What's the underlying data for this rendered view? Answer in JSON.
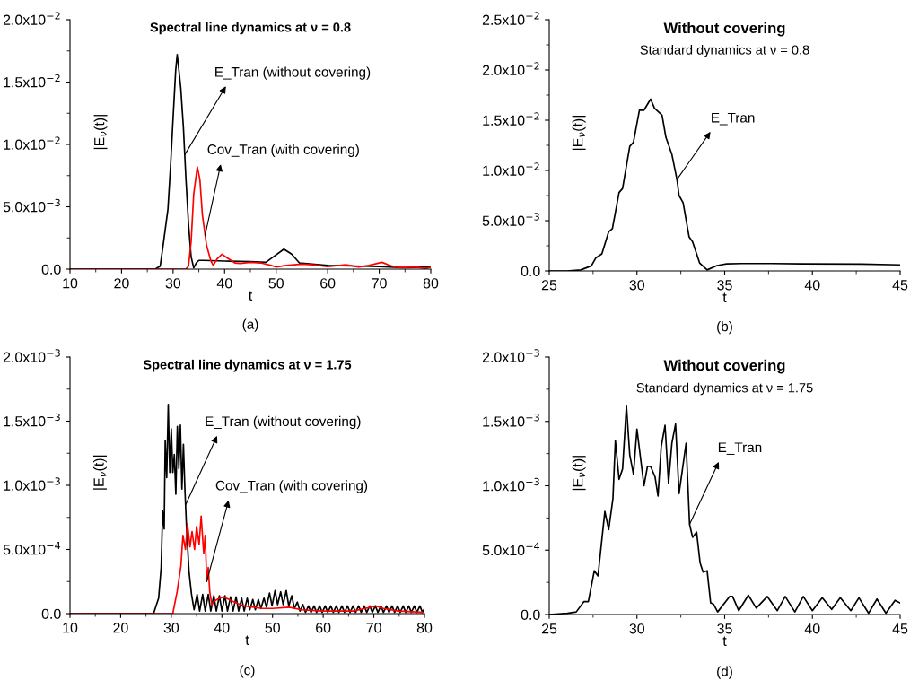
{
  "chart_data": [
    {
      "type": "line",
      "title": "Spectral line dynamics at ν = 0.8",
      "xlabel": "t",
      "ylabel": "|E$_{ν}$(t)|",
      "xlim": [
        10,
        80
      ],
      "ylim": [
        0,
        0.02
      ],
      "xticks": [
        10,
        {
          "value": 15,
          "label": null
        },
        20,
        {
          "value": 25,
          "label": null
        },
        30,
        {
          "value": 35,
          "label": null
        },
        40,
        {
          "value": 45,
          "label": null
        },
        50,
        {
          "value": 55,
          "label": null
        },
        60,
        {
          "value": 65,
          "label": null
        },
        70,
        {
          "value": 75,
          "label": null
        },
        80
      ],
      "yticks": [
        {
          "value": 0,
          "label": "0.0"
        },
        {
          "value": 0.0025,
          "label": null
        },
        {
          "value": 0.005,
          "label": "5.0x10$^{−3}$"
        },
        {
          "value": 0.0075,
          "label": null
        },
        {
          "value": 0.01,
          "label": "1.0x10$^{−2}$"
        },
        {
          "value": 0.0125,
          "label": null
        },
        {
          "value": 0.015,
          "label": "1.5x10$^{−2}$"
        },
        {
          "value": 0.0175,
          "label": null
        },
        {
          "value": 0.02,
          "label": "2.0x10$^{−2}$"
        }
      ],
      "series": [
        {
          "color": "#000000",
          "x": [
            10,
            26.5,
            27.5,
            28,
            29,
            29.5,
            30,
            30.5,
            30.8,
            31.2,
            31.5,
            32,
            32.5,
            33,
            33.5,
            34,
            34.5,
            35,
            36,
            40,
            45,
            48,
            49.5,
            51.5,
            53,
            54.5,
            57,
            60,
            65,
            70,
            75,
            80
          ],
          "values": [
            0,
            0,
            0.00024,
            0.0017,
            0.0048,
            0.0082,
            0.0121,
            0.0159,
            0.0172,
            0.0157,
            0.0145,
            0.0114,
            0.0072,
            0.0036,
            0.001,
            0.0001,
            0.0005,
            0.0007,
            0.0007,
            0.00065,
            0.0006,
            0.00055,
            0.001,
            0.0016,
            0.0012,
            0.0005,
            0.0004,
            0.0003,
            0.00025,
            0.0002,
            0.00012,
            0.00017
          ]
        },
        {
          "color": "#ff0000",
          "x": [
            10,
            32.5,
            33,
            33.5,
            34,
            34.7,
            35.2,
            35.7,
            36.5,
            37.3,
            37.8,
            38.5,
            39.5,
            40.5,
            42,
            43,
            45,
            47,
            49,
            50,
            52,
            55,
            57,
            60,
            63.5,
            66,
            68,
            70.5,
            72.5,
            74,
            77,
            79,
            80
          ],
          "values": [
            0,
            0,
            0.00024,
            0.0022,
            0.006,
            0.0082,
            0.0072,
            0.0043,
            0.0019,
            0.0007,
            0.0003,
            0.0008,
            0.0012,
            0.0009,
            0.0005,
            0.00045,
            0.00055,
            0.0005,
            0.0003,
            0.00017,
            0.0003,
            0.0004,
            0.00035,
            0.0002,
            0.00035,
            0.00017,
            0.0003,
            0.00055,
            0.00024,
            0.00012,
            0.00017,
            5e-05,
            0.00015
          ]
        }
      ],
      "annotations": [
        {
          "text": "E_Tran (without covering)",
          "x": 32.3,
          "y": 0.0092
        },
        {
          "text": "Cov_Tran (with covering)",
          "x": 36.2,
          "y": 0.0027
        },
        "(a)"
      ]
    },
    {
      "type": "line",
      "title": "Without covering",
      "subtitle": "Standard dynamics at ν = 0.8",
      "xlabel": "t",
      "ylabel": "|E$_{ν}$(t)|",
      "xlim": [
        25,
        45
      ],
      "ylim": [
        0,
        0.025
      ],
      "xticks": [
        25,
        {
          "value": 27.5,
          "label": null
        },
        30,
        {
          "value": 32.5,
          "label": null
        },
        35,
        {
          "value": 37.5,
          "label": null
        },
        40,
        {
          "value": 42.5,
          "label": null
        },
        45
      ],
      "yticks": [
        {
          "value": 0,
          "label": "0.0"
        },
        {
          "value": 0.0025,
          "label": null
        },
        {
          "value": 0.005,
          "label": "5.0x10$^{−3}$"
        },
        {
          "value": 0.0075,
          "label": null
        },
        {
          "value": 0.01,
          "label": "1.0x10$^{−2}$"
        },
        {
          "value": 0.0125,
          "label": null
        },
        {
          "value": 0.015,
          "label": "1.5x10$^{−2}$"
        },
        {
          "value": 0.0175,
          "label": null
        },
        {
          "value": 0.02,
          "label": "2.0x10$^{−2}$"
        },
        {
          "value": 0.0225,
          "label": null
        },
        {
          "value": 0.025,
          "label": "2.5x10$^{−2}$"
        }
      ],
      "series": [
        {
          "color": "#000000",
          "x": [
            25,
            26,
            26.8,
            27.4,
            27.66,
            28.0,
            28.39,
            28.6,
            28.98,
            29.18,
            29.59,
            29.8,
            30.14,
            30.4,
            30.78,
            31.0,
            31.43,
            31.65,
            31.99,
            32.28,
            32.4,
            32.63,
            32.97,
            33.17,
            33.57,
            34.0,
            34.51,
            34.77,
            35.11,
            35.97,
            37.68,
            39.4,
            42.8,
            45
          ],
          "values": [
            0,
            0,
            0.0001,
            0.0005,
            0.0013,
            0.0017,
            0.0039,
            0.0042,
            0.0078,
            0.0082,
            0.0124,
            0.0128,
            0.016,
            0.016,
            0.0171,
            0.0162,
            0.0155,
            0.0133,
            0.0116,
            0.0091,
            0.0075,
            0.0068,
            0.0034,
            0.0029,
            0.0008,
            0.0001,
            0.0005,
            0.0006,
            0.0007,
            0.00074,
            0.00074,
            0.0007,
            0.00068,
            0.0006
          ]
        }
      ],
      "annotations": [
        {
          "text": "E_Tran",
          "x": 32.28,
          "y": 0.0091
        },
        "(b)"
      ]
    },
    {
      "type": "line",
      "title": "Spectral line dynamics at ν = 1.75",
      "xlabel": "t",
      "ylabel": "|E$_{ν}$(t)|",
      "xlim": [
        10,
        80
      ],
      "ylim": [
        0,
        0.002
      ],
      "xticks": [
        10,
        {
          "value": 15,
          "label": null
        },
        20,
        {
          "value": 25,
          "label": null
        },
        30,
        {
          "value": 35,
          "label": null
        },
        40,
        {
          "value": 45,
          "label": null
        },
        50,
        {
          "value": 55,
          "label": null
        },
        60,
        {
          "value": 65,
          "label": null
        },
        70,
        {
          "value": 75,
          "label": null
        },
        80
      ],
      "yticks": [
        {
          "value": 0,
          "label": "0.0"
        },
        {
          "value": 0.00025,
          "label": null
        },
        {
          "value": 0.0005,
          "label": "5.0x10$^{−4}$"
        },
        {
          "value": 0.00075,
          "label": null
        },
        {
          "value": 0.001,
          "label": "1.0x10$^{−3}$"
        },
        {
          "value": 0.00125,
          "label": null
        },
        {
          "value": 0.0015,
          "label": "1.5x10$^{−3}$"
        },
        {
          "value": 0.00175,
          "label": null
        },
        {
          "value": 0.002,
          "label": "2.0x10$^{−3}$"
        }
      ],
      "series": [
        {
          "color": "#000000",
          "x": [
            10,
            26.5,
            27.5,
            28,
            28.3,
            28.6,
            28.8,
            29.1,
            29.4,
            29.7,
            30,
            30.3,
            30.6,
            30.9,
            31.2,
            31.5,
            31.8,
            32.1,
            32.4,
            32.7,
            33.0,
            33.5,
            34,
            34.5,
            35.1,
            35.6,
            36.2,
            36.7,
            37.3,
            37.8,
            38.4,
            38.9,
            39.5,
            40.0,
            40.6,
            41.1,
            41.7,
            42.2,
            42.8,
            43.3,
            43.9,
            44.4,
            45.0,
            45.5,
            46.1,
            46.6,
            47.2,
            47.7,
            48.3,
            48.8,
            49.4,
            49.9,
            50.5,
            51.0,
            51.6,
            52.1,
            52.7,
            53.2,
            53.8,
            54.3,
            54.9,
            55.4,
            56.0,
            56.5,
            57.1,
            57.6,
            58.2,
            58.7,
            59.3,
            59.8,
            60.4,
            60.9,
            61.5,
            62.0,
            62.6,
            63.1,
            63.7,
            64.2,
            64.8,
            65.3,
            65.9,
            66.4,
            67.0,
            67.5,
            68.1,
            68.6,
            69.2,
            69.7,
            70.3,
            70.8,
            71.4,
            71.9,
            72.5,
            73.0,
            73.6,
            74.1,
            74.7,
            75.2,
            75.8,
            76.3,
            76.9,
            77.4,
            78.0,
            78.5,
            79.1,
            79.6,
            80.0
          ],
          "values": [
            0,
            0,
            0.00012,
            0.00036,
            0.0008,
            0.00066,
            0.00135,
            0.00106,
            0.00163,
            0.0011,
            0.00144,
            0.0011,
            0.00124,
            0.00093,
            0.00146,
            0.00113,
            0.00147,
            0.00097,
            0.00132,
            0.00096,
            0.00068,
            0.00033,
            0.00015,
            3e-05,
            0.00015,
            2e-05,
            0.00015,
            2e-05,
            0.00015,
            2e-05,
            0.00014,
            2e-05,
            0.00014,
            2e-05,
            0.00014,
            2e-05,
            0.00013,
            2e-05,
            0.00013,
            2e-05,
            0.00012,
            2e-05,
            0.00012,
            3e-05,
            0.00011,
            3e-05,
            0.00011,
            4e-05,
            0.00012,
            5e-05,
            0.00016,
            6e-05,
            0.00018,
            7e-05,
            0.00017,
            7e-05,
            0.00018,
            6e-05,
            0.00014,
            4e-05,
            9e-05,
            2e-05,
            7e-05,
            1e-05,
            6e-05,
            1e-05,
            6e-05,
            1e-05,
            6e-05,
            1e-05,
            6e-05,
            1e-05,
            6e-05,
            1e-05,
            6e-05,
            1e-05,
            6e-05,
            1e-05,
            6e-05,
            1e-05,
            6e-05,
            1e-05,
            6e-05,
            1e-05,
            6e-05,
            1e-05,
            6e-05,
            1e-05,
            6e-05,
            1e-05,
            6e-05,
            1e-05,
            6e-05,
            1e-05,
            6e-05,
            1e-05,
            6e-05,
            1e-05,
            6e-05,
            1e-05,
            6e-05,
            1e-05,
            6e-05,
            1e-05,
            6e-05,
            1e-05,
            4e-05
          ]
        },
        {
          "color": "#ff0000",
          "x": [
            10,
            30.3,
            31.15,
            31.9,
            32.3,
            32.8,
            33.2,
            33.7,
            34.1,
            34.6,
            35.0,
            35.5,
            35.9,
            36.4,
            36.7,
            37.0,
            37.3,
            37.6,
            38.0,
            38.6,
            39.5,
            40.4,
            41.9,
            44.3,
            47.9,
            50,
            53.3,
            55.7,
            59.9,
            65.9,
            68.3,
            70.4,
            71.9,
            74.9,
            80
          ],
          "values": [
            0,
            0,
            0.00017,
            0.00037,
            0.00061,
            0.0005,
            0.0007,
            0.00052,
            0.00064,
            0.0005,
            0.00068,
            0.00054,
            0.00076,
            0.00047,
            0.00061,
            0.00025,
            0.00036,
            0.00017,
            7e-05,
            0.0001,
            0.00012,
            0.00013,
            0.0001,
            6e-05,
            4e-05,
            4e-05,
            5e-05,
            3e-05,
            2e-05,
            2e-05,
            4e-05,
            6e-05,
            4e-05,
            2e-05,
            1e-05
          ]
        }
      ],
      "annotations": [
        {
          "text": "E_Tran (without covering)",
          "x": 32.85,
          "y": 0.00085
        },
        {
          "text": "Cov_Tran (with covering)",
          "x": 37.0,
          "y": 0.00025
        },
        "(c)"
      ]
    },
    {
      "type": "line",
      "title": "Without covering",
      "subtitle": "Standard dynamics at ν = 1.75",
      "xlabel": "t",
      "ylabel": "|E$_{ν}$(t)|",
      "xlim": [
        25,
        45
      ],
      "ylim": [
        0,
        0.002
      ],
      "xticks": [
        25,
        {
          "value": 27.5,
          "label": null
        },
        30,
        {
          "value": 32.5,
          "label": null
        },
        35,
        {
          "value": 37.5,
          "label": null
        },
        40,
        {
          "value": 42.5,
          "label": null
        },
        45
      ],
      "yticks": [
        {
          "value": 0,
          "label": "0.0"
        },
        {
          "value": 0.00025,
          "label": null
        },
        {
          "value": 0.0005,
          "label": "5.0x10$^{−4}$"
        },
        {
          "value": 0.00075,
          "label": null
        },
        {
          "value": 0.001,
          "label": "1.0x10$^{−3}$"
        },
        {
          "value": 0.00125,
          "label": null
        },
        {
          "value": 0.0015,
          "label": "1.5x10$^{−3}$"
        },
        {
          "value": 0.00175,
          "label": null
        },
        {
          "value": 0.002,
          "label": "2.0x10$^{−3}$"
        }
      ],
      "series": [
        {
          "color": "#000000",
          "x": [
            25,
            26.03,
            26.54,
            26.97,
            27.23,
            27.57,
            27.78,
            28.17,
            28.39,
            28.63,
            28.77,
            28.98,
            29.18,
            29.4,
            29.59,
            29.8,
            30.0,
            30.4,
            30.6,
            30.78,
            31.03,
            31.2,
            31.38,
            31.6,
            31.8,
            31.99,
            32.2,
            32.4,
            32.8,
            33.0,
            33.17,
            33.4,
            33.6,
            33.77,
            34.0,
            34.2,
            34.37,
            34.6,
            35.28,
            35.45,
            35.8,
            36.35,
            36.8,
            37.43,
            38.0,
            38.45,
            39.0,
            39.48,
            40.0,
            40.56,
            41.1,
            41.59,
            42.19,
            42.65,
            43.2,
            43.68,
            44.19,
            44.71,
            45
          ],
          "values": [
            0,
            1e-05,
            2e-05,
            0.0001,
            0.0001,
            0.00034,
            0.0003,
            0.0008,
            0.00066,
            0.0009,
            0.00135,
            0.00105,
            0.00113,
            0.00162,
            0.00124,
            0.00109,
            0.00144,
            0.001,
            0.00115,
            0.00115,
            0.00107,
            0.00092,
            0.0013,
            0.00147,
            0.00102,
            0.00133,
            0.00148,
            0.00094,
            0.00133,
            0.0007,
            0.0006,
            0.00064,
            0.0004,
            0.00033,
            0.00034,
            9e-05,
            8e-05,
            2e-05,
            0.00014,
            0.00014,
            3e-05,
            0.00015,
            5e-05,
            0.00014,
            3e-05,
            0.00014,
            2e-05,
            0.00014,
            3e-05,
            0.00013,
            4e-05,
            0.00013,
            3e-05,
            0.00013,
            1e-05,
            0.00012,
            1e-05,
            0.00011,
            9e-05
          ]
        }
      ],
      "annotations": [
        {
          "text": "E_Tran",
          "x": 33.0,
          "y": 0.0007
        },
        "(d)"
      ]
    }
  ]
}
